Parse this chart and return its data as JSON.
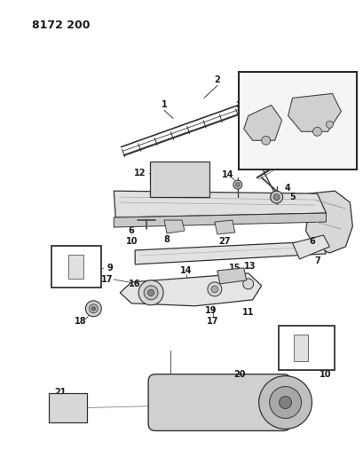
{
  "title": "8172 200",
  "bg": "#ffffff",
  "lc": "#1a1a1a",
  "fig_w": 4.1,
  "fig_h": 5.33,
  "dpi": 100
}
